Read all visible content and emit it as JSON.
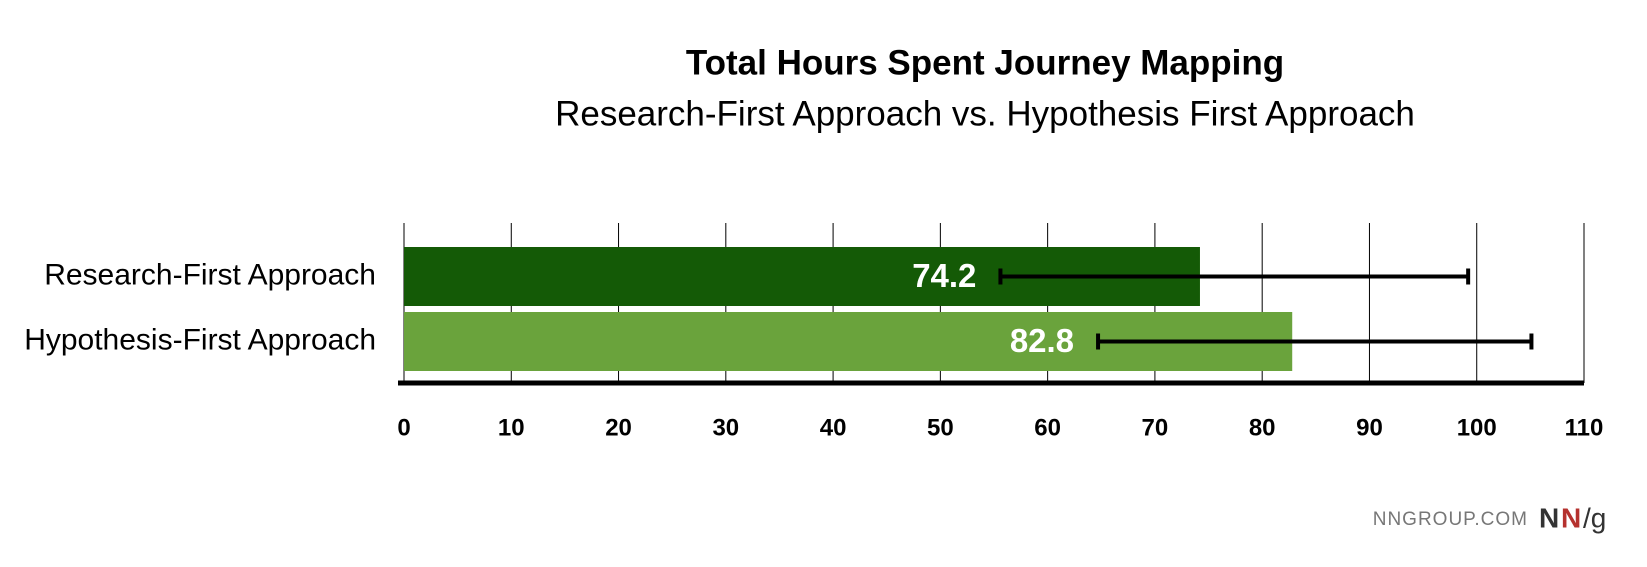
{
  "chart_data": {
    "type": "hbar",
    "title": "Total Hours Spent Journey Mapping",
    "subtitle": "Research-First Approach vs. Hypothesis First Approach",
    "categories": [
      "Research-First Approach",
      "Hypothesis-First Approach"
    ],
    "values": [
      74.2,
      82.8
    ],
    "ci_low": [
      55.6,
      64.7
    ],
    "ci_high": [
      99.2,
      105.1
    ],
    "colors": [
      "#145a06",
      "#6aa33c"
    ],
    "xlim": [
      0,
      110
    ],
    "xticks": [
      0,
      10,
      20,
      30,
      40,
      50,
      60,
      70,
      80,
      90,
      100,
      110
    ],
    "grid": true
  },
  "footer": {
    "site": "NNGROUP.COM",
    "logo": [
      "N",
      "N",
      "/g"
    ]
  }
}
